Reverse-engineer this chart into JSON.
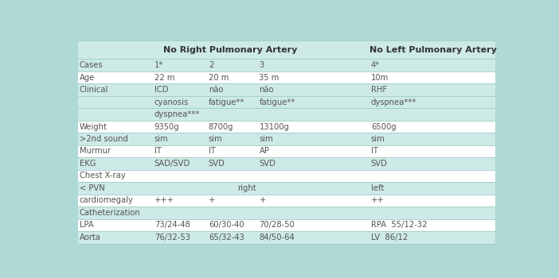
{
  "bg_color": "#aed9d4",
  "white_row": "#ffffff",
  "teal_row": "#cdeae6",
  "text_color": "#555555",
  "bold_color": "#333333",
  "figsize": [
    7.02,
    3.5
  ],
  "dpi": 100,
  "header_group1": "No Right Pulmonary Artery",
  "header_group2": "No Left Pulmonary Artery",
  "rows": [
    {
      "label": "Cases",
      "c1": "1*",
      "c2": "2",
      "c3": "3",
      "c4": "4*",
      "white": false
    },
    {
      "label": "Age",
      "c1": "22 m",
      "c2": "20 m",
      "c3": "35 m",
      "c4": "10m",
      "white": true
    },
    {
      "label": "Clinical",
      "c1": "ICD",
      "c2": "não",
      "c3": "não",
      "c4": "RHF",
      "white": false
    },
    {
      "label": "",
      "c1": "cyanosis",
      "c2": "fatigue**",
      "c3": "fatigue**",
      "c4": "dyspnea***",
      "white": false
    },
    {
      "label": "",
      "c1": "dyspnea***",
      "c2": "",
      "c3": "",
      "c4": "",
      "white": false
    },
    {
      "label": "Weight",
      "c1": "9350g",
      "c2": "8700g",
      "c3": "13100g",
      "c4": "6500g",
      "white": true
    },
    {
      "label": ">2nd sound",
      "c1": "sim",
      "c2": "sim",
      "c3": "sim",
      "c4": "sim",
      "white": false
    },
    {
      "label": "Murmur",
      "c1": "IT",
      "c2": "IT",
      "c3": "AP",
      "c4": "IT",
      "white": true
    },
    {
      "label": "EKG",
      "c1": "SAD/SVD",
      "c2": "SVD",
      "c3": "SVD",
      "c4": "SVD",
      "white": false
    },
    {
      "label": "Chest X-ray",
      "c1": "",
      "c2": "",
      "c3": "",
      "c4": "",
      "white": true
    },
    {
      "label": "< PVN",
      "c1": "",
      "c2_pvn": "right",
      "c3": "",
      "c4_pvn": "left",
      "white": false
    },
    {
      "label": "cardiomegaly",
      "c1": "+++",
      "c2": "+",
      "c3": "+",
      "c4": "++",
      "white": true
    },
    {
      "label": "Catheterization",
      "c1": "",
      "c2": "",
      "c3": "",
      "c4": "",
      "white": false
    },
    {
      "label": "LPA",
      "c1": "73/24-48",
      "c2": "60/30-40",
      "c3": "70/28-50",
      "c4": "RPA  55/12-32",
      "white": true
    },
    {
      "label": "Aorta",
      "c1": "76/32-53",
      "c2": "65/32-43",
      "c3": "84/50-64",
      "c4": "LV  86/12",
      "white": false
    }
  ]
}
